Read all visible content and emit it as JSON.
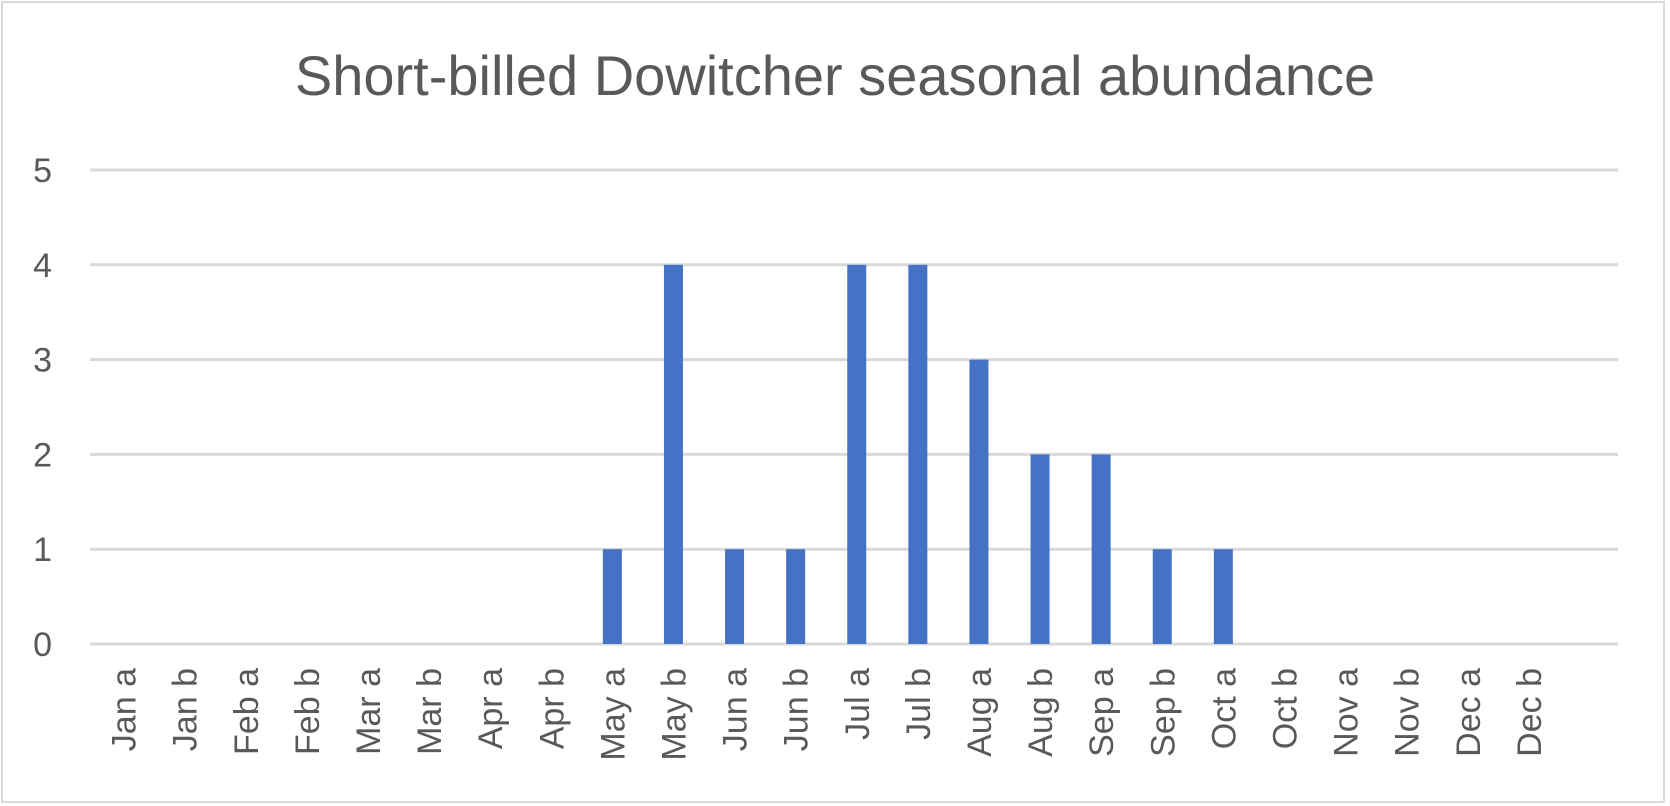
{
  "chart_data": {
    "type": "bar",
    "title": "Short-billed Dowitcher seasonal abundance",
    "xlabel": "",
    "ylabel": "",
    "ylim": [
      0,
      5
    ],
    "yticks": [
      0,
      1,
      2,
      3,
      4,
      5
    ],
    "grid": true,
    "legend": "none",
    "bar_color": "#4472c4",
    "categories": [
      "Jan a",
      "Jan b",
      "Feb a",
      "Feb b",
      "Mar a",
      "Mar b",
      "Apr a",
      "Apr b",
      "May a",
      "May b",
      "Jun a",
      "Jun b",
      "Jul a",
      "Jul b",
      "Aug a",
      "Aug b",
      "Sep a",
      "Sep b",
      "Oct a",
      "Oct b",
      "Nov a",
      "Nov b",
      "Dec a",
      "Dec b"
    ],
    "values": [
      0,
      0,
      0,
      0,
      0,
      0,
      0,
      0,
      1,
      4,
      1,
      1,
      4,
      4,
      3,
      2,
      2,
      1,
      1,
      0,
      0,
      0,
      0,
      0
    ]
  }
}
